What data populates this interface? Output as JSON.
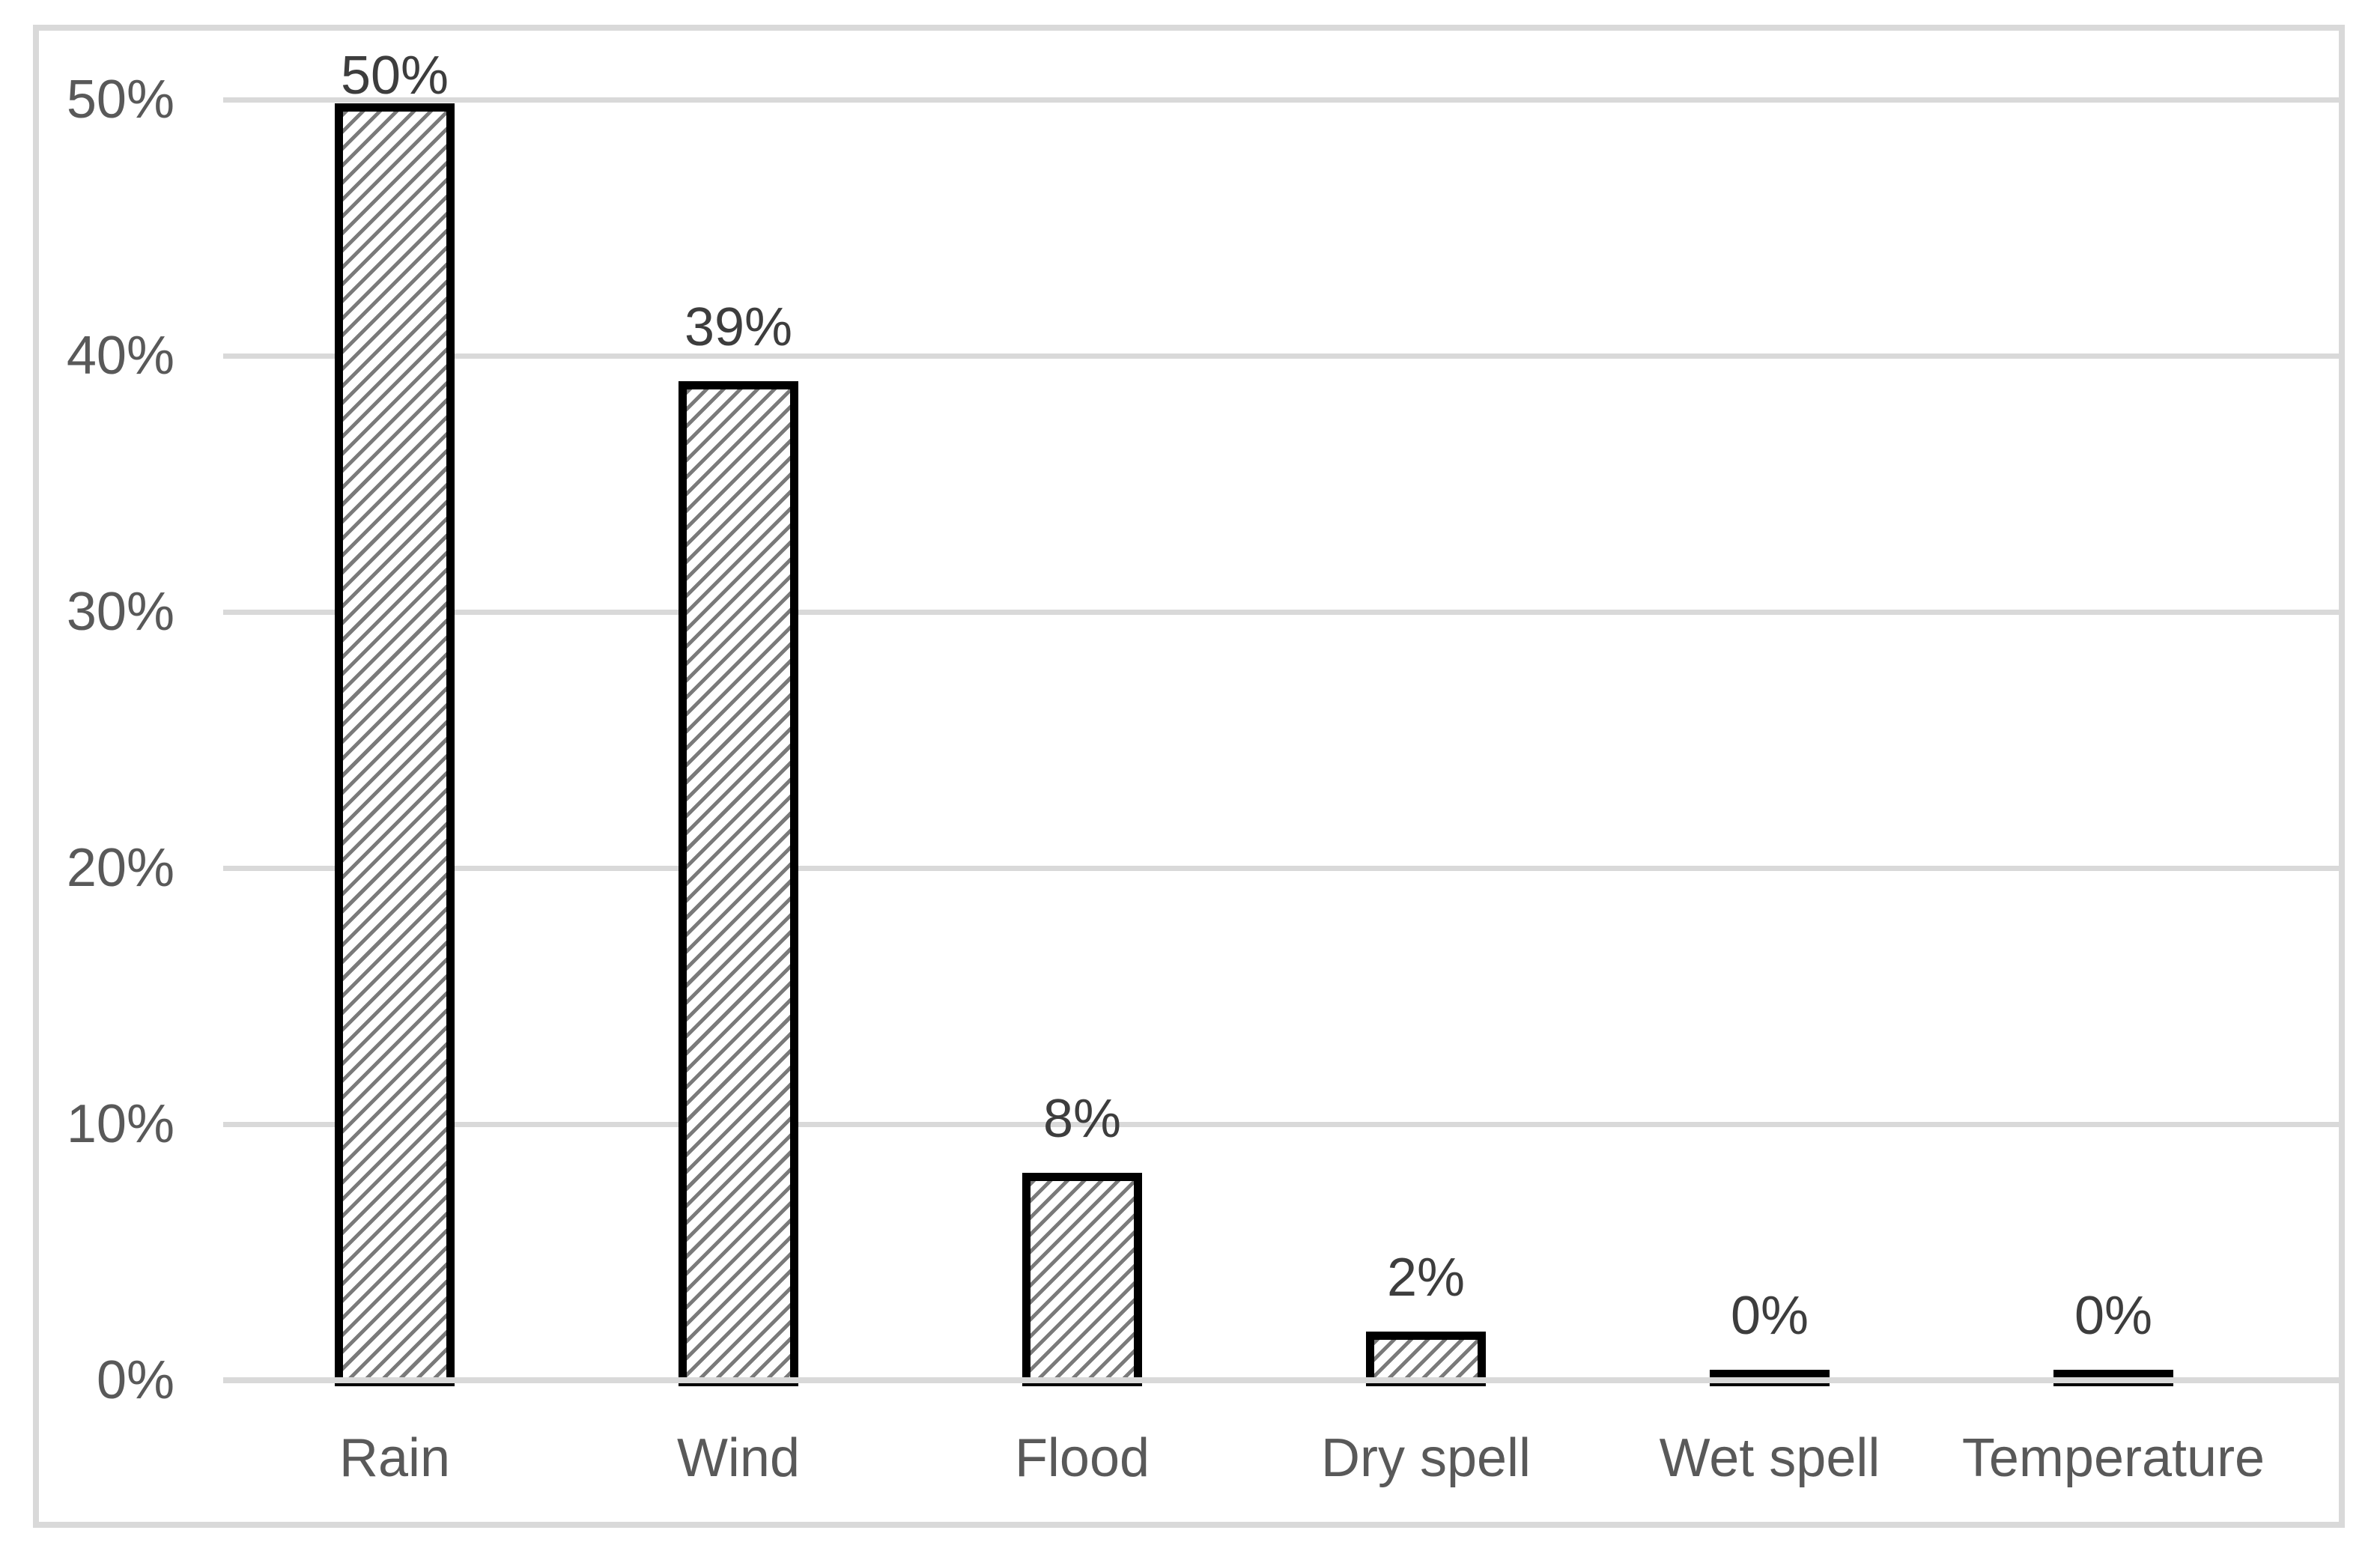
{
  "chart_data": {
    "type": "bar",
    "title": "",
    "xlabel": "",
    "ylabel": "",
    "categories": [
      "Rain",
      "Wind",
      "Flood",
      "Dry spell",
      "Wet spell",
      "Temperature"
    ],
    "values": [
      50,
      39,
      8,
      2,
      0,
      0
    ],
    "data_labels": [
      "50%",
      "39%",
      "8%",
      "2%",
      "0%",
      "0%"
    ],
    "bar_rendered_pct": [
      49.85,
      39.0,
      8.1,
      1.9,
      0.4,
      0.4
    ],
    "y_tick_labels": [
      "0%",
      "10%",
      "20%",
      "30%",
      "40%",
      "50%"
    ],
    "y_tick_values": [
      0,
      10,
      20,
      30,
      40,
      50
    ],
    "ylim": [
      0,
      50
    ],
    "grid": true,
    "legend": false,
    "bar_fill": "diagonal-hatch"
  },
  "style": {
    "background": "#ffffff",
    "frame_color": "#d9d9d9",
    "gridline_color": "#d9d9d9",
    "baseline_color": "#d9d9d9",
    "bar_border_color": "#000000",
    "bar_fill_color": "#ffffff",
    "hatch_color": "#7a7a7a",
    "axis_text_color": "#595959",
    "data_label_color": "#3d3d3d"
  }
}
